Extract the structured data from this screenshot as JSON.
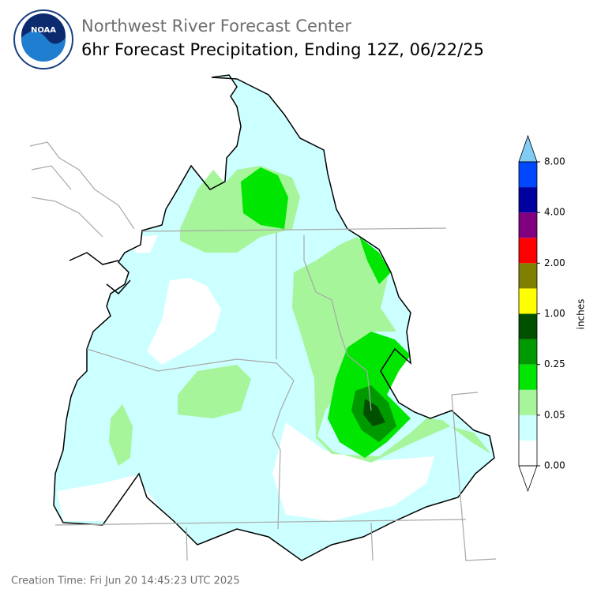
{
  "logo": {
    "text": "NOAA"
  },
  "header": {
    "org": "Northwest River Forecast Center",
    "title": "6hr Forecast Precipitation, Ending 12Z, 06/22/25"
  },
  "colorbar": {
    "label": "inches",
    "ticks": [
      "0.00",
      "0.05",
      "0.25",
      "1.00",
      "2.00",
      "4.00",
      "8.00"
    ],
    "colors": [
      "#ffffff",
      "#ccffff",
      "#a6f59a",
      "#00e600",
      "#009900",
      "#005000",
      "#ffff00",
      "#808000",
      "#ff0000",
      "#800080",
      "#0000a0",
      "#0048ff"
    ],
    "under_color": "#ffffff",
    "over_color": "#80ccf5"
  },
  "footer": {
    "creation": "Creation Time: Fri Jun 20 14:45:23 UTC 2025"
  }
}
